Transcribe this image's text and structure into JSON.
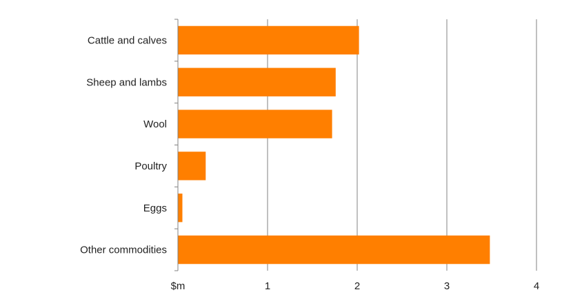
{
  "chart_data": {
    "type": "bar",
    "orientation": "horizontal",
    "categories": [
      "Cattle and calves",
      "Sheep and lambs",
      "Wool",
      "Poultry",
      "Eggs",
      "Other commodities"
    ],
    "values": [
      2.02,
      1.76,
      1.72,
      0.31,
      0.05,
      3.48
    ],
    "xlim": [
      0,
      4
    ],
    "x_ticks": [
      {
        "value": 0,
        "label": "$m"
      },
      {
        "value": 1,
        "label": "1"
      },
      {
        "value": 2,
        "label": "2"
      },
      {
        "value": 3,
        "label": "3"
      },
      {
        "value": 4,
        "label": "4"
      }
    ],
    "grid": "vertical",
    "legend": "none",
    "bar_color": "#FF7F00",
    "grid_color": "#808080"
  }
}
